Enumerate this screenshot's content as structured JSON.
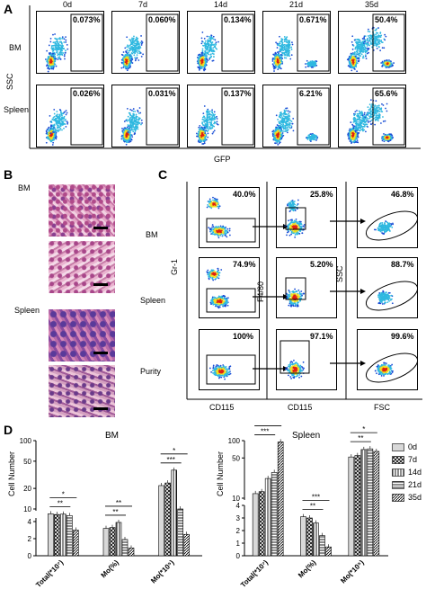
{
  "panels": {
    "A": "A",
    "B": "B",
    "C": "C",
    "D": "D"
  },
  "panelA": {
    "timepoints": [
      "0d",
      "7d",
      "14d",
      "21d",
      "35d"
    ],
    "rows": [
      {
        "label": "BM",
        "percents": [
          "0.073%",
          "0.060%",
          "0.134%",
          "0.671%",
          "50.4%"
        ]
      },
      {
        "label": "Spleen",
        "percents": [
          "0.026%",
          "0.031%",
          "0.137%",
          "6.21%",
          "65.6%"
        ]
      }
    ],
    "ylabel": "SSC",
    "xlabel": "GFP"
  },
  "panelB": {
    "labels": [
      "BM",
      "Spleen"
    ]
  },
  "panelC": {
    "rows": [
      "BM",
      "Spleen",
      "Purity"
    ],
    "col1_pct": [
      "40.0%",
      "74.9%",
      "100%"
    ],
    "col2_pct": [
      "25.8%",
      "5.20%",
      "97.1%"
    ],
    "col3_pct": [
      "46.8%",
      "88.7%",
      "99.6%"
    ],
    "axis": {
      "gr1": "Gr-1",
      "f480": "F4/80",
      "ssc": "SSC",
      "cd115_1": "CD115",
      "cd115_2": "CD115",
      "fsc": "FSC"
    }
  },
  "chart_data": [
    {
      "type": "bar",
      "title": "BM",
      "ylabel": "Cell Number",
      "categories": [
        "Total(*10⁷)",
        "Mo(%)",
        "Mo(*10⁵)"
      ],
      "series": [
        {
          "name": "0d",
          "values": [
            8.5,
            3.2,
            22
          ]
        },
        {
          "name": "7d",
          "values": [
            8.3,
            3.3,
            24
          ]
        },
        {
          "name": "14d",
          "values": [
            8.4,
            3.9,
            37
          ]
        },
        {
          "name": "21d",
          "values": [
            8.0,
            1.9,
            10
          ]
        },
        {
          "name": "35d",
          "values": [
            3.0,
            0.9,
            2.5
          ]
        }
      ],
      "ylim": [
        0,
        100
      ],
      "yticks": [
        "0",
        "2",
        "4",
        "10",
        "20",
        "50",
        "100"
      ],
      "significance": [
        "**",
        "*",
        "**",
        "**",
        "***",
        "*",
        "**"
      ]
    },
    {
      "type": "bar",
      "title": "Spleen",
      "ylabel": "Cell Number",
      "categories": [
        "Total(*10⁷)",
        "Mo(%)",
        "Mo(*10⁵)"
      ],
      "series": [
        {
          "name": "0d",
          "values": [
            12,
            3.1,
            52
          ]
        },
        {
          "name": "7d",
          "values": [
            13,
            3.0,
            55
          ]
        },
        {
          "name": "14d",
          "values": [
            22,
            2.6,
            70
          ]
        },
        {
          "name": "21d",
          "values": [
            28,
            1.6,
            72
          ]
        },
        {
          "name": "35d",
          "values": [
            95,
            0.7,
            65
          ]
        }
      ],
      "ylim": [
        0,
        100
      ],
      "yticks": [
        "0",
        "1",
        "2",
        "3",
        "4",
        "10",
        "50",
        "100"
      ],
      "significance": [
        "***",
        "***",
        "**",
        "***",
        "**",
        "*",
        "*"
      ]
    }
  ],
  "legend": [
    "0d",
    "7d",
    "14d",
    "21d",
    "35d"
  ],
  "colors": {
    "dot_blue": "#1a4fd6",
    "dot_cyan": "#2fb8e0",
    "dot_yellow": "#f0e020",
    "dot_red": "#e02010",
    "he_pink": "#d68fb5",
    "he_purple": "#7a3f8f"
  }
}
